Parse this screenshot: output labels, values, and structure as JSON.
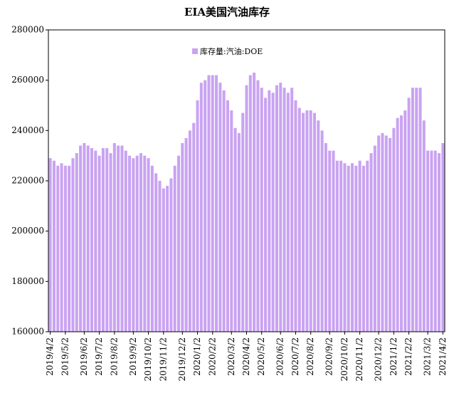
{
  "chart_data": {
    "type": "bar",
    "title": "EIA美国汽油库存",
    "series": [
      {
        "name": "库存量:汽油:DOE",
        "color": "#c9a3f2",
        "values": [
          229000,
          228000,
          226000,
          227000,
          226000,
          226000,
          229000,
          231000,
          234000,
          235000,
          234000,
          233000,
          232000,
          230000,
          233000,
          233000,
          231000,
          235000,
          234000,
          234000,
          232000,
          230000,
          229000,
          230000,
          231000,
          230000,
          229000,
          226000,
          223000,
          220000,
          217000,
          218000,
          221000,
          226000,
          230000,
          235000,
          237000,
          240000,
          243000,
          252000,
          259000,
          260000,
          262000,
          262000,
          262000,
          259000,
          256000,
          252000,
          248000,
          241000,
          239000,
          247000,
          258000,
          262000,
          263000,
          260000,
          257000,
          253000,
          256000,
          255000,
          258000,
          259000,
          257000,
          255000,
          257000,
          252000,
          249000,
          247000,
          248000,
          248000,
          247000,
          244000,
          240000,
          235000,
          232000,
          232000,
          228000,
          228000,
          227000,
          226000,
          227000,
          226000,
          228000,
          226000,
          228000,
          231000,
          234000,
          238000,
          239000,
          238000,
          237000,
          241000,
          245000,
          246000,
          248000,
          253000,
          257000,
          257000,
          257000,
          244000,
          232000,
          232000,
          232000,
          231000,
          235000
        ]
      }
    ],
    "categories": [
      "2019/4/2",
      null,
      null,
      null,
      "2019/5/2",
      null,
      null,
      null,
      null,
      "2019/6/2",
      null,
      null,
      null,
      "2019/7/2",
      null,
      null,
      null,
      "2019/8/2",
      null,
      null,
      null,
      null,
      "2019/9/2",
      null,
      null,
      null,
      "2019/10/2",
      null,
      null,
      null,
      "2019/11/2",
      null,
      null,
      null,
      null,
      "2019/12/2",
      null,
      null,
      null,
      "2020/1/2",
      null,
      null,
      null,
      "2020/2/2",
      null,
      null,
      null,
      null,
      "2020/3/2",
      null,
      null,
      null,
      "2020/4/2",
      null,
      null,
      null,
      "2020/5/2",
      null,
      null,
      null,
      null,
      "2020/6/2",
      null,
      null,
      null,
      "2020/7/2",
      null,
      null,
      null,
      "2020/8/2",
      null,
      null,
      null,
      null,
      "2020/9/2",
      null,
      null,
      null,
      "2020/10/2",
      null,
      null,
      null,
      "2020/11/2",
      null,
      null,
      null,
      null,
      "2020/12/2",
      null,
      null,
      null,
      "2021/1/2",
      null,
      null,
      null,
      "2021/2/2",
      null,
      null,
      null,
      null,
      "2021/3/2",
      null,
      null,
      null,
      "2021/4/2"
    ],
    "ylim": [
      160000,
      280000
    ],
    "yticks": [
      160000,
      180000,
      200000,
      220000,
      240000,
      260000,
      280000
    ],
    "grid": false
  }
}
